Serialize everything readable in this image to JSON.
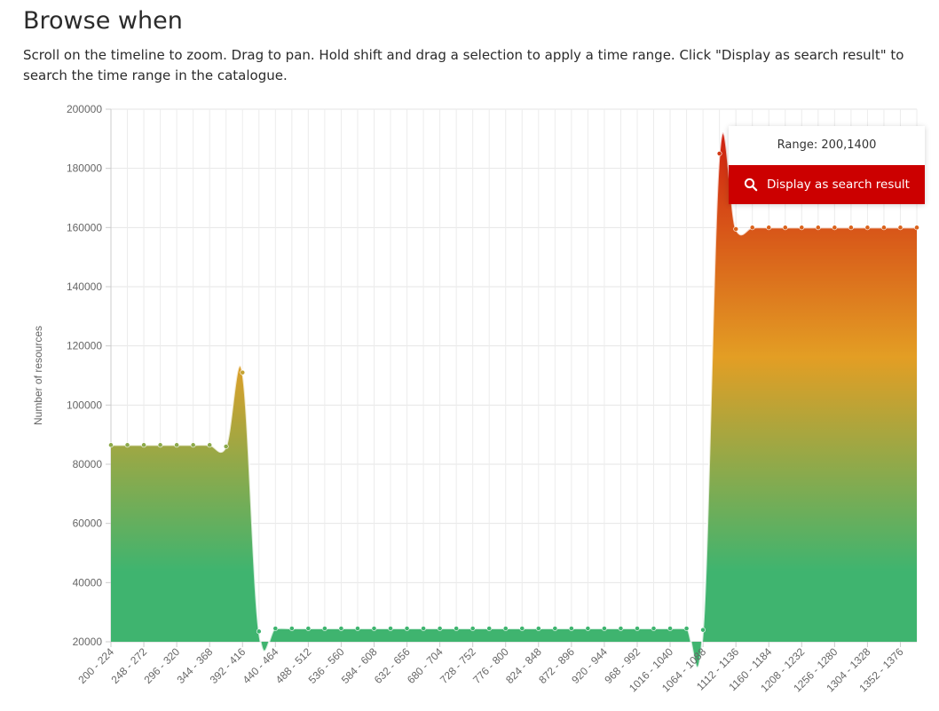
{
  "page": {
    "title": "Browse when",
    "description": "Scroll on the timeline to zoom. Drag to pan. Hold shift and drag a selection to apply a time range. Click \"Display as search result\" to search the time range in the catalogue."
  },
  "range_panel": {
    "range_label": "Range: 200,1400",
    "button_label": "Display as search result",
    "button_icon": "search-icon",
    "button_color": "#cc0000"
  },
  "chart_data": {
    "type": "area",
    "ylabel": "Number of resources",
    "ylim": [
      20000,
      200000
    ],
    "yticks": [
      20000,
      40000,
      60000,
      80000,
      100000,
      120000,
      140000,
      160000,
      180000,
      200000
    ],
    "grid": true,
    "gradient": [
      "#cf1f10",
      "#e39e24",
      "#3fb46f"
    ],
    "xtick_labels": [
      "200 - 224",
      "248 - 272",
      "296 - 320",
      "344 - 368",
      "392 - 416",
      "440 - 464",
      "488 - 512",
      "536 - 560",
      "584 - 608",
      "632 - 656",
      "680 - 704",
      "728 - 752",
      "776 - 800",
      "824 - 848",
      "872 - 896",
      "920 - 944",
      "968 - 992",
      "1016 - 1040",
      "1064 - 1088",
      "1112 - 1136",
      "1160 - 1184",
      "1208 - 1232",
      "1256 - 1280",
      "1304 - 1328",
      "1352 - 1376"
    ],
    "x_start": 200,
    "x_step": 24,
    "values": [
      86500,
      86500,
      86500,
      86500,
      86500,
      86500,
      86500,
      86000,
      111000,
      23500,
      24500,
      24500,
      24500,
      24500,
      24500,
      24500,
      24500,
      24500,
      24500,
      24500,
      24500,
      24500,
      24500,
      24500,
      24500,
      24500,
      24500,
      24500,
      24500,
      24500,
      24500,
      24500,
      24500,
      24500,
      24500,
      24500,
      24000,
      185000,
      159500,
      160000,
      160000,
      160000,
      160000,
      160000,
      160000,
      160000,
      160000,
      160000,
      160000,
      160000
    ]
  }
}
